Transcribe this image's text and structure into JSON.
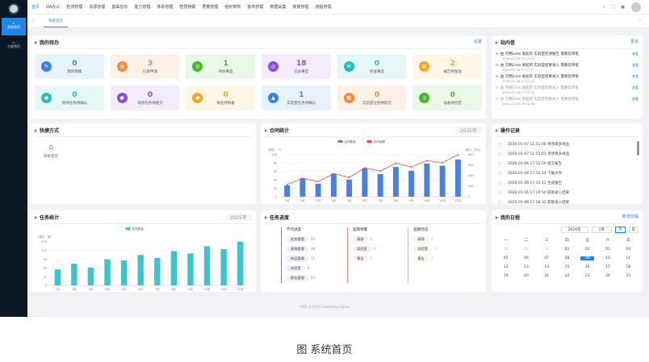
{
  "nav": {
    "items": [
      "首页",
      "OA办公",
      "检测管理",
      "资源管理",
      "基础信息",
      "能力管理",
      "体系管理",
      "智慧物联",
      "质量管理",
      "组织架构",
      "客商管理",
      "数据采集",
      "常量管理",
      "流程管理"
    ],
    "active": 0
  },
  "sidebar": {
    "items": [
      "系统首页",
      "大屏首页"
    ]
  },
  "tabs": {
    "items": [
      "系统首页"
    ]
  },
  "todo": {
    "title": "我的待办",
    "settings": "设置",
    "cards": [
      {
        "value": "0",
        "label": "我的草稿",
        "color": "#3b82e8",
        "bg": "#e8f1fe"
      },
      {
        "value": "3",
        "label": "已发申请",
        "color": "#f5883b",
        "bg": "#fef1e8"
      },
      {
        "value": "1",
        "label": "待办事宜",
        "color": "#45b72e",
        "bg": "#e9f8e7"
      },
      {
        "value": "18",
        "label": "已办事宜",
        "color": "#8a4fd8",
        "bg": "#f2ecfd"
      },
      {
        "value": "0",
        "label": "抄送事宜",
        "color": "#1fc0b5",
        "bg": "#e6f8f6"
      },
      {
        "value": "2",
        "label": "报告待发放",
        "color": "#f5a623",
        "bg": "#fef6e6"
      },
      {
        "value": "0",
        "label": "现场任务待确认",
        "color": "#1fc0b5",
        "bg": "#e6f8f6"
      },
      {
        "value": "0",
        "label": "现场任务待提交",
        "color": "#8a4fd8",
        "bg": "#f2ecfd"
      },
      {
        "value": "0",
        "label": "样品待制备",
        "color": "#f5a623",
        "bg": "#fef6e6"
      },
      {
        "value": "1",
        "label": "实验室任务待确认",
        "color": "#3b82e8",
        "bg": "#e8f1fe"
      },
      {
        "value": "0",
        "label": "实验室任务待提交",
        "color": "#f5883b",
        "bg": "#fef1e8"
      },
      {
        "value": "0",
        "label": "设备待检定",
        "color": "#45b72e",
        "bg": "#e9f8e7"
      }
    ]
  },
  "inbox": {
    "title": "站内信",
    "more": "更多",
    "view": "查看",
    "items": [
      {
        "text": "由 方略Lims 发起的 实验室检测报告 需要您审批",
        "time": "2026-01-06 17:12:59",
        "read": false
      },
      {
        "text": "由 方略Lims 发起的 实验室结果录入 需要您审批",
        "time": "2026-01-06 17:11:27",
        "read": false
      },
      {
        "text": "由 方略Lims 发起的 实验室结果录入 需要您审批",
        "time": "2026-01-06 17:11:24",
        "read": false
      },
      {
        "text": "由 方略Lims 发起的 实验室结果录入 需要您审批",
        "time": "2026-01-06 17:11:12",
        "read": true
      },
      {
        "text": "由 方略Lims 发起的 实验室结果录入 需要您审批",
        "time": "2025-12-03 09:14:36",
        "read": true
      }
    ]
  },
  "shortcut": {
    "title": "快捷方式",
    "items": [
      "系统首页"
    ]
  },
  "oplog": {
    "title": "操作记录",
    "items": [
      "2026-01-07 11:51:06 单项目多样品",
      "2026-01-07 11:51:02 单项目多样品",
      "2026-01-06 17:32:59 提交报告",
      "2026-01-06 17:32:14 下载文件",
      "2026-01-06 17:31:11 生成报告",
      "2026-01-06 17:29:50 获取录入结果",
      "2026-01-06 17:28:32 获取录入结果"
    ]
  },
  "chart_data": [
    {
      "title": "合同统计",
      "type": "bar+line",
      "year": "2025年",
      "categories": [
        "1月",
        "2月",
        "3月",
        "4月",
        "5月",
        "6月",
        "7月",
        "8月",
        "9月",
        "10月",
        "11月",
        "12月"
      ],
      "yleft": {
        "label": "(单位：个)",
        "range": [
          0,
          100
        ],
        "ticks": [
          0,
          20,
          40,
          60,
          80,
          100
        ]
      },
      "yright": {
        "label": "(单位：万元)",
        "range": [
          0,
          400
        ],
        "ticks": [
          0,
          100,
          200,
          300,
          400
        ]
      },
      "series": [
        {
          "name": "合同数量",
          "type": "bar",
          "axis": "left",
          "color": "#4a7fe6",
          "values": [
            27,
            44,
            31,
            55,
            41,
            68,
            54,
            71,
            62,
            79,
            74,
            89
          ]
        },
        {
          "name": "合同金额",
          "type": "line",
          "axis": "right",
          "color": "#e8474b",
          "values": [
            115,
            175,
            145,
            220,
            185,
            275,
            245,
            320,
            285,
            345,
            325,
            400
          ]
        }
      ],
      "legend": "top"
    },
    {
      "title": "任务统计",
      "type": "bar",
      "year": "2025年",
      "categories": [
        "1月",
        "2月",
        "3月",
        "4月",
        "5月",
        "6月",
        "7月",
        "8月",
        "9月",
        "10月",
        "11月",
        "12月"
      ],
      "yleft": {
        "label": "(单位：项)",
        "range": [
          0,
          150
        ],
        "ticks": [
          0,
          30,
          60,
          90,
          120,
          150
        ]
      },
      "series": [
        {
          "name": "任务数量",
          "type": "bar",
          "axis": "left",
          "color": "#3cc5cf",
          "values": [
            55,
            75,
            62,
            90,
            86,
            105,
            95,
            118,
            110,
            135,
            125,
            150
          ]
        }
      ],
      "legend": "top"
    }
  ],
  "progress": {
    "title": "任务进度",
    "groups": [
      {
        "name": "节点进度",
        "color": "#7d8fe0",
        "bg": "#eef0fb",
        "items": [
          [
            "任务管理",
            "26"
          ],
          [
            "现场管理",
            "18"
          ],
          [
            "样品管理",
            "11"
          ],
          [
            "实验室",
            "9"
          ],
          [
            "报告管理",
            "24"
          ]
        ]
      },
      {
        "name": "超期预警",
        "color": "#e88",
        "bg": "#fdeeee",
        "items": [
          [
            "现场",
            "2"
          ],
          [
            "实验室",
            "0"
          ],
          [
            "报告",
            "1"
          ]
        ]
      },
      {
        "name": "超期完成",
        "color": "#e0b860",
        "bg": "#fdf5e6",
        "items": [
          [
            "现场",
            "3"
          ],
          [
            "实验室",
            "1"
          ],
          [
            "报告",
            "3"
          ]
        ]
      }
    ]
  },
  "schedule": {
    "title": "我的日程",
    "add": "新增日程",
    "year": "2026年",
    "month": "1月",
    "modes": [
      "月",
      "年"
    ],
    "weekdays": [
      "一",
      "二",
      "三",
      "四",
      "五",
      "六",
      "日"
    ],
    "days": [
      [
        "29",
        1
      ],
      [
        "30",
        1
      ],
      [
        "31",
        1
      ],
      [
        "01",
        0
      ],
      [
        "02",
        0
      ],
      [
        "03",
        0
      ],
      [
        "04",
        0
      ],
      [
        "05",
        0
      ],
      [
        "06",
        0
      ],
      [
        "07",
        0
      ],
      [
        "08",
        0
      ],
      [
        "09",
        2
      ],
      [
        "10",
        0
      ],
      [
        "11",
        0
      ],
      [
        "12",
        0
      ],
      [
        "13",
        0
      ],
      [
        "14",
        0
      ],
      [
        "15",
        0
      ],
      [
        "16",
        0
      ],
      [
        "17",
        0
      ],
      [
        "18",
        0
      ],
      [
        "19",
        0
      ],
      [
        "20",
        0
      ],
      [
        "21",
        0
      ],
      [
        "22",
        0
      ],
      [
        "23",
        0
      ],
      [
        "24",
        0
      ],
      [
        "25",
        0
      ]
    ]
  },
  "footer": "LIMS ©2024 Created by Lihero",
  "caption": "图 系统首页",
  "watermark": "LIHERO"
}
